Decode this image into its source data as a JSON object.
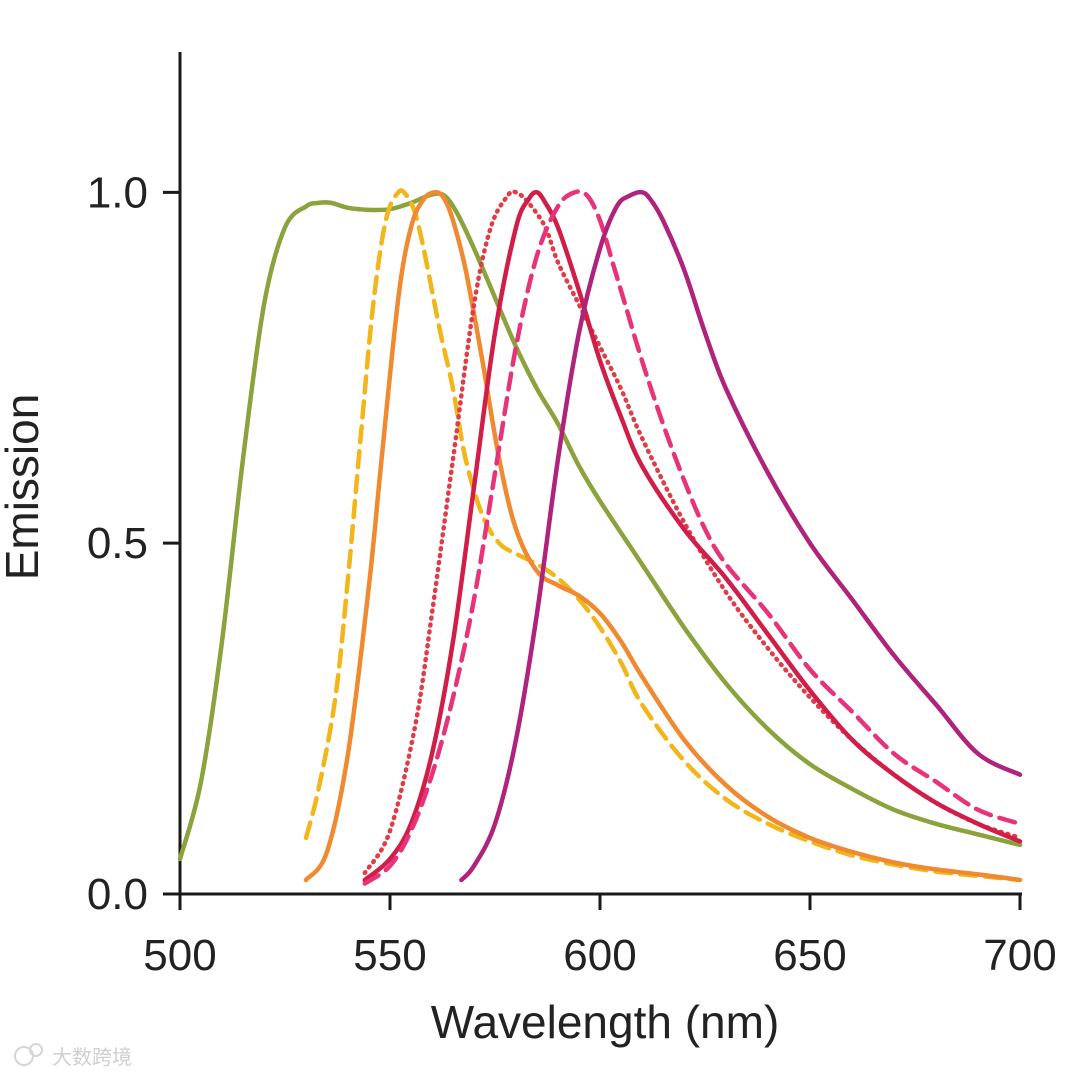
{
  "chart_data": {
    "type": "line",
    "title": "",
    "xlabel": "Wavelength (nm)",
    "ylabel": "Emission",
    "xlim": [
      500,
      700
    ],
    "ylim": [
      0,
      1.2
    ],
    "xticks": [
      500,
      550,
      600,
      650,
      700
    ],
    "xtick_labels": [
      "500",
      "550",
      "600",
      "650",
      "700"
    ],
    "yticks": [
      0,
      0.5,
      1.0
    ],
    "ytick_labels": [
      "0.0",
      "0.5",
      "1.0"
    ],
    "grid": false,
    "series": [
      {
        "name": "green-solid",
        "color": "#8aa33c",
        "style": "solid",
        "x": [
          500,
          505,
          510,
          515,
          520,
          525,
          530,
          533,
          536,
          540,
          545,
          550,
          555,
          560,
          563,
          566,
          570,
          575,
          580,
          585,
          590,
          595,
          600,
          610,
          620,
          630,
          640,
          650,
          660,
          670,
          680,
          690,
          700
        ],
        "y": [
          0.05,
          0.16,
          0.36,
          0.62,
          0.84,
          0.95,
          0.98,
          0.985,
          0.985,
          0.978,
          0.975,
          0.976,
          0.985,
          0.997,
          0.995,
          0.97,
          0.92,
          0.85,
          0.78,
          0.72,
          0.67,
          0.61,
          0.56,
          0.47,
          0.38,
          0.3,
          0.235,
          0.185,
          0.15,
          0.12,
          0.1,
          0.085,
          0.07
        ]
      },
      {
        "name": "yellow-dashed",
        "color": "#f2b51a",
        "style": "dashed",
        "x": [
          530,
          533,
          537,
          540,
          543,
          546,
          549,
          552,
          554,
          556,
          558,
          560,
          562,
          565,
          568,
          572,
          576,
          580,
          585,
          590,
          595,
          600,
          605,
          610,
          620,
          630,
          640,
          650,
          660,
          670,
          680,
          690,
          700
        ],
        "y": [
          0.08,
          0.15,
          0.28,
          0.45,
          0.65,
          0.84,
          0.96,
          1.0,
          0.995,
          0.97,
          0.92,
          0.86,
          0.8,
          0.72,
          0.62,
          0.54,
          0.5,
          0.485,
          0.47,
          0.45,
          0.42,
          0.38,
          0.33,
          0.27,
          0.19,
          0.135,
          0.1,
          0.075,
          0.055,
          0.042,
          0.032,
          0.026,
          0.02
        ]
      },
      {
        "name": "orange-solid",
        "color": "#f08a30",
        "style": "solid",
        "x": [
          530,
          535,
          540,
          545,
          548,
          552,
          555,
          558,
          561,
          563,
          565,
          568,
          572,
          576,
          580,
          585,
          590,
          595,
          600,
          605,
          610,
          620,
          630,
          640,
          650,
          660,
          670,
          680,
          690,
          700
        ],
        "y": [
          0.02,
          0.06,
          0.2,
          0.44,
          0.62,
          0.85,
          0.95,
          0.99,
          1.0,
          0.99,
          0.96,
          0.89,
          0.76,
          0.62,
          0.52,
          0.46,
          0.44,
          0.425,
          0.4,
          0.36,
          0.31,
          0.22,
          0.155,
          0.11,
          0.08,
          0.06,
          0.045,
          0.035,
          0.028,
          0.02
        ]
      },
      {
        "name": "red-dotted",
        "color": "#e03c48",
        "style": "dotted",
        "x": [
          544,
          550,
          556,
          560,
          565,
          570,
          574,
          578,
          580,
          583,
          587,
          590,
          595,
          600,
          605,
          610,
          620,
          630,
          640,
          650,
          660,
          670,
          680,
          690,
          700
        ],
        "y": [
          0.03,
          0.09,
          0.24,
          0.4,
          0.62,
          0.84,
          0.95,
          0.995,
          1.0,
          0.985,
          0.95,
          0.9,
          0.84,
          0.78,
          0.72,
          0.65,
          0.53,
          0.43,
          0.35,
          0.28,
          0.22,
          0.17,
          0.13,
          0.1,
          0.08
        ]
      },
      {
        "name": "crimson-solid",
        "color": "#d11e48",
        "style": "solid",
        "x": [
          544,
          550,
          555,
          560,
          565,
          570,
          575,
          580,
          583,
          585,
          587,
          590,
          595,
          600,
          605,
          610,
          620,
          630,
          640,
          650,
          660,
          670,
          680,
          690,
          700
        ],
        "y": [
          0.02,
          0.05,
          0.1,
          0.2,
          0.36,
          0.58,
          0.8,
          0.95,
          0.99,
          1.0,
          0.985,
          0.95,
          0.86,
          0.76,
          0.68,
          0.61,
          0.52,
          0.45,
          0.37,
          0.29,
          0.22,
          0.17,
          0.13,
          0.1,
          0.075
        ]
      },
      {
        "name": "pink-dashed",
        "color": "#e8337a",
        "style": "dashed",
        "x": [
          544,
          550,
          555,
          560,
          565,
          570,
          575,
          580,
          585,
          590,
          594,
          597,
          600,
          603,
          606,
          610,
          615,
          620,
          625,
          630,
          640,
          650,
          660,
          670,
          680,
          690,
          700
        ],
        "y": [
          0.015,
          0.04,
          0.09,
          0.17,
          0.28,
          0.42,
          0.6,
          0.78,
          0.91,
          0.98,
          1.0,
          0.995,
          0.96,
          0.9,
          0.84,
          0.76,
          0.67,
          0.59,
          0.52,
          0.47,
          0.4,
          0.32,
          0.26,
          0.2,
          0.16,
          0.12,
          0.1
        ]
      },
      {
        "name": "magenta-solid",
        "color": "#b0237a",
        "style": "solid",
        "x": [
          567,
          570,
          575,
          580,
          585,
          590,
          595,
          600,
          604,
          607,
          610,
          612,
          615,
          620,
          625,
          630,
          640,
          650,
          660,
          670,
          680,
          690,
          700
        ],
        "y": [
          0.02,
          0.04,
          0.1,
          0.22,
          0.4,
          0.62,
          0.8,
          0.92,
          0.98,
          0.995,
          1.0,
          0.99,
          0.96,
          0.89,
          0.8,
          0.72,
          0.6,
          0.5,
          0.42,
          0.34,
          0.27,
          0.2,
          0.17
        ]
      }
    ]
  }
}
